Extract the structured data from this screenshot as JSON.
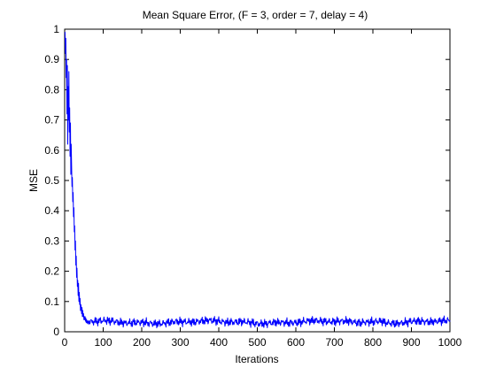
{
  "chart_data": {
    "type": "line",
    "title": "Mean Square Error, (F = 3, order = 7, delay = 4)",
    "xlabel": "Iterations",
    "ylabel": "MSE",
    "xlim": [
      0,
      1000
    ],
    "ylim": [
      0,
      1
    ],
    "xticks": [
      0,
      100,
      200,
      300,
      400,
      500,
      600,
      700,
      800,
      900,
      1000
    ],
    "yticks": [
      0,
      0.1,
      0.2,
      0.3,
      0.4,
      0.5,
      0.6,
      0.7,
      0.8,
      0.9,
      1
    ],
    "grid": false,
    "legend": "none",
    "line_color": "#0000ff",
    "series": [
      {
        "values": [
          0.99,
          0.92,
          0.97,
          0.84,
          0.9,
          0.72,
          0.88,
          0.62,
          0.81,
          0.7,
          0.86,
          0.66,
          0.74,
          0.58,
          0.69,
          0.52,
          0.62,
          0.55,
          0.48,
          0.51,
          0.43,
          0.46,
          0.38,
          0.41,
          0.33,
          0.35,
          0.27,
          0.3,
          0.22,
          0.25,
          0.18,
          0.21,
          0.15,
          0.17,
          0.12,
          0.16,
          0.1,
          0.13,
          0.09,
          0.11,
          0.07,
          0.09,
          0.08,
          0.06,
          0.08,
          0.05,
          0.07,
          0.05,
          0.06,
          0.04,
          0.05,
          0.04,
          0.05,
          0.035,
          0.045,
          0.03,
          0.04,
          0.032,
          0.028,
          0.036
        ]
      }
    ],
    "xvalues_initial": [
      1,
      2,
      3,
      4,
      5,
      6,
      7,
      8,
      9,
      10,
      11,
      12,
      13,
      14,
      15,
      16,
      17,
      18,
      19,
      20,
      21,
      22,
      23,
      24,
      25,
      26,
      27,
      28,
      29,
      30,
      31,
      32,
      33,
      34,
      35,
      36,
      37,
      38,
      39,
      40,
      41,
      42,
      43,
      44,
      45,
      46,
      47,
      48,
      49,
      50,
      51,
      52,
      53,
      54,
      55,
      56,
      57,
      58,
      59,
      60
    ],
    "steady_state_level": 0.032,
    "steady_state_noise": 0.012
  }
}
